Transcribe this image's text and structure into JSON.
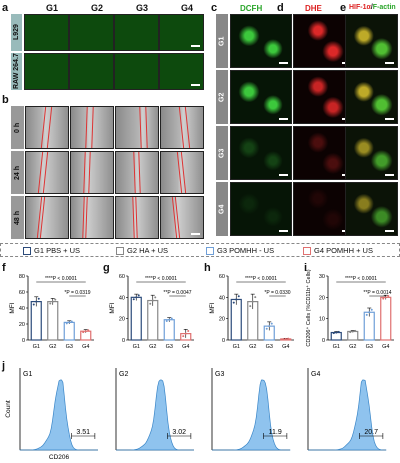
{
  "panels": {
    "a": "a",
    "b": "b",
    "c": "c",
    "d": "d",
    "e": "e",
    "f": "f",
    "g": "g",
    "h": "h",
    "i": "i",
    "j": "j"
  },
  "group_headers": [
    "G1",
    "G2",
    "G3",
    "G4"
  ],
  "row_labels_a": [
    "L929",
    "RAW 264.7"
  ],
  "row_labels_b": [
    "0 h",
    "24 h",
    "48 h"
  ],
  "stain_headers": {
    "c": "DCFH",
    "d": "DHE",
    "e_red": "HIF-1α",
    "e_sep": "/",
    "e_green": "F-actin"
  },
  "row_labels_cde": [
    "G1",
    "G2",
    "G3",
    "G4"
  ],
  "legend": [
    {
      "label": "G1 PBS + US",
      "color": "#2b4a7a"
    },
    {
      "label": "G2 HA + US",
      "color": "#888888"
    },
    {
      "label": "G3 POMHH - US",
      "color": "#6f9fd8"
    },
    {
      "label": "G4 POMHH + US",
      "color": "#e07070"
    }
  ],
  "colors": {
    "G1": "#2b4a7a",
    "G2": "#888888",
    "G3": "#6f9fd8",
    "G4": "#e07070",
    "hist_fill": "#8fc3ee",
    "hist_line": "#3a86c8"
  },
  "chart_data": [
    {
      "panel": "f",
      "type": "bar",
      "categories": [
        "G1",
        "G2",
        "G3",
        "G4"
      ],
      "values": [
        48,
        48,
        22,
        11
      ],
      "errors": [
        6,
        4,
        2,
        2
      ],
      "ylabel": "MFI",
      "ylim": [
        0,
        80
      ],
      "yticks": [
        0,
        20,
        40,
        60,
        80
      ],
      "annotations": [
        "****P < 0.0001",
        "*P = 0.0319"
      ]
    },
    {
      "panel": "g",
      "type": "bar",
      "categories": [
        "G1",
        "G2",
        "G3",
        "G4"
      ],
      "values": [
        40,
        37,
        19,
        6
      ],
      "errors": [
        3,
        5,
        2,
        4
      ],
      "ylabel": "MFI",
      "ylim": [
        0,
        60
      ],
      "yticks": [
        0,
        20,
        40,
        60
      ],
      "annotations": [
        "****P < 0.0001",
        "**P = 0.0047"
      ]
    },
    {
      "panel": "h",
      "type": "bar",
      "categories": [
        "G1",
        "G2",
        "G3",
        "G4"
      ],
      "values": [
        38,
        36,
        13,
        1
      ],
      "errors": [
        5,
        7,
        4,
        0.5
      ],
      "ylabel": "MFI",
      "ylim": [
        0,
        60
      ],
      "yticks": [
        0,
        20,
        40,
        60
      ],
      "annotations": [
        "****P < 0.0001",
        "*P = 0.0330"
      ]
    },
    {
      "panel": "i",
      "type": "bar",
      "categories": [
        "G1",
        "G2",
        "G3",
        "G4"
      ],
      "values": [
        3.5,
        4,
        13,
        20
      ],
      "errors": [
        0.5,
        0.5,
        2,
        1
      ],
      "ylabel": "CD206⁺ Cells (%CD11b⁺ Cells)",
      "ylim": [
        0,
        30
      ],
      "yticks": [
        0,
        10,
        20,
        30
      ],
      "annotations": [
        "****P < 0.0001",
        "**P = 0.0014"
      ]
    },
    {
      "panel": "j",
      "type": "histogram",
      "xlabel": "CD206",
      "ylabel": "Count",
      "series": [
        {
          "name": "G1",
          "gate_value": "3.51"
        },
        {
          "name": "G2",
          "gate_value": "3.02"
        },
        {
          "name": "G3",
          "gate_value": "11.9"
        },
        {
          "name": "G4",
          "gate_value": "20.7"
        }
      ]
    }
  ]
}
